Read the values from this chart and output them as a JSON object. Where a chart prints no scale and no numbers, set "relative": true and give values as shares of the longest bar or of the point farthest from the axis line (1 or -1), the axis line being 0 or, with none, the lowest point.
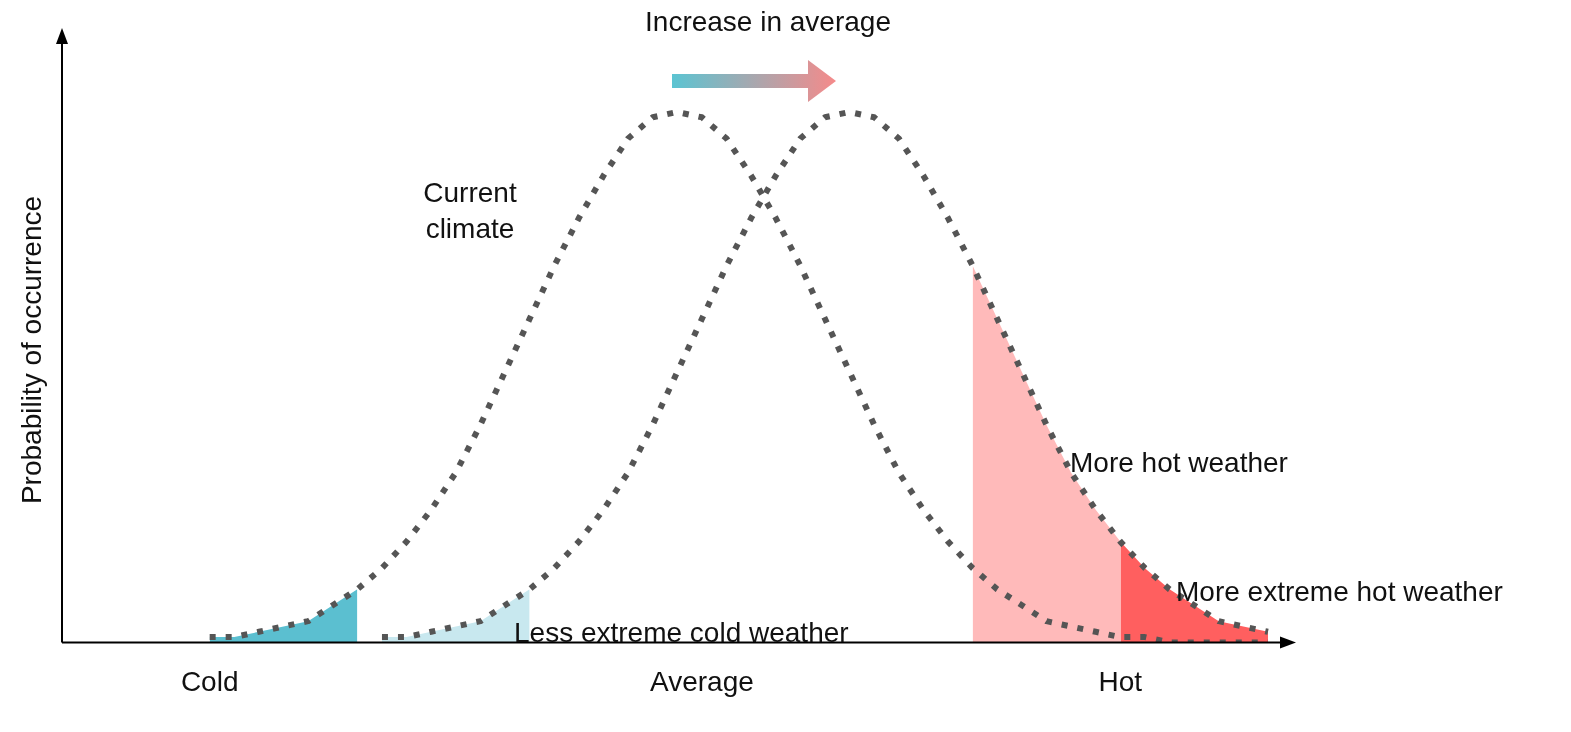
{
  "chart_data": {
    "type": "line",
    "title": "Increase in average",
    "ylabel": "Probability of occurrence",
    "relative": true,
    "legend": false,
    "grid": false,
    "marker": "none",
    "categories": [
      null,
      null,
      null,
      null,
      null,
      null,
      "Cold",
      null,
      null,
      null,
      null,
      null,
      null,
      null,
      null,
      null,
      null,
      null,
      null,
      null,
      null,
      null,
      null,
      null,
      null,
      null,
      "Average",
      null,
      null,
      null,
      null,
      null,
      null,
      null,
      null,
      null,
      null,
      null,
      null,
      null,
      null,
      null,
      null,
      "Hot",
      null,
      null,
      null,
      null,
      null,
      null
    ],
    "series": [
      {
        "type": "area",
        "color": "#5bbfd0",
        "values": [
          null,
          null,
          null,
          null,
          null,
          null,
          0.01,
          0.01,
          0.02,
          0.03,
          0.04,
          0.07,
          0.1,
          null,
          null,
          null,
          null,
          null,
          null,
          null,
          null,
          null,
          null,
          null,
          null,
          null,
          null,
          null,
          null,
          null,
          null,
          null,
          null,
          null,
          null,
          null,
          null,
          null,
          null,
          null,
          null,
          null,
          null,
          null,
          null,
          null,
          null,
          null,
          null,
          null
        ]
      },
      {
        "type": "area",
        "color": "#c8e8ef",
        "values": [
          null,
          null,
          null,
          null,
          null,
          null,
          null,
          null,
          null,
          null,
          null,
          null,
          null,
          0.01,
          0.01,
          0.02,
          0.03,
          0.04,
          0.07,
          0.1,
          null,
          null,
          null,
          null,
          null,
          null,
          null,
          null,
          null,
          null,
          null,
          null,
          null,
          null,
          null,
          null,
          null,
          null,
          null,
          null,
          null,
          null,
          null,
          null,
          null,
          null,
          null,
          null,
          null,
          null
        ]
      },
      {
        "type": "area",
        "color": "#ffbaba",
        "values": [
          null,
          null,
          null,
          null,
          null,
          null,
          null,
          null,
          null,
          null,
          null,
          null,
          null,
          null,
          null,
          null,
          null,
          null,
          null,
          null,
          null,
          null,
          null,
          null,
          null,
          null,
          null,
          null,
          null,
          null,
          null,
          null,
          null,
          null,
          null,
          null,
          null,
          0.71,
          0.61,
          0.51,
          0.41,
          0.32,
          0.25,
          0.19,
          null,
          null,
          null,
          null,
          null,
          null
        ]
      },
      {
        "type": "area",
        "color": "#ff5f5f",
        "values": [
          null,
          null,
          null,
          null,
          null,
          null,
          null,
          null,
          null,
          null,
          null,
          null,
          null,
          null,
          null,
          null,
          null,
          null,
          null,
          null,
          null,
          null,
          null,
          null,
          null,
          null,
          null,
          null,
          null,
          null,
          null,
          null,
          null,
          null,
          null,
          null,
          null,
          null,
          null,
          null,
          null,
          null,
          null,
          0.19,
          0.14,
          0.1,
          0.07,
          0.04,
          0.03,
          0.02
        ]
      },
      {
        "color": "#555555",
        "line_style": "dotted",
        "values": [
          null,
          null,
          null,
          null,
          null,
          null,
          0.01,
          0.01,
          0.02,
          0.03,
          0.04,
          0.07,
          0.1,
          0.14,
          0.19,
          0.25,
          0.32,
          0.41,
          0.51,
          0.61,
          0.71,
          0.8,
          0.88,
          0.95,
          0.99,
          1,
          0.99,
          0.95,
          0.88,
          0.8,
          0.71,
          0.61,
          0.51,
          0.41,
          0.32,
          0.25,
          0.19,
          0.14,
          0.1,
          0.07,
          0.04,
          0.03,
          0.02,
          0.01,
          0.01,
          0,
          0,
          0,
          0,
          0
        ]
      },
      {
        "color": "#555555",
        "line_style": "dotted",
        "values": [
          null,
          null,
          null,
          null,
          null,
          null,
          null,
          null,
          null,
          null,
          null,
          null,
          null,
          0.01,
          0.01,
          0.02,
          0.03,
          0.04,
          0.07,
          0.1,
          0.14,
          0.19,
          0.25,
          0.32,
          0.41,
          0.51,
          0.61,
          0.71,
          0.8,
          0.88,
          0.95,
          0.99,
          1,
          0.99,
          0.95,
          0.88,
          0.8,
          0.71,
          0.61,
          0.51,
          0.41,
          0.32,
          0.25,
          0.19,
          0.14,
          0.1,
          0.07,
          0.04,
          0.03,
          0.02
        ]
      }
    ],
    "annotations": [
      "Current climate",
      "Less extreme cold weather",
      "More hot weather",
      "More extreme hot weather"
    ]
  }
}
